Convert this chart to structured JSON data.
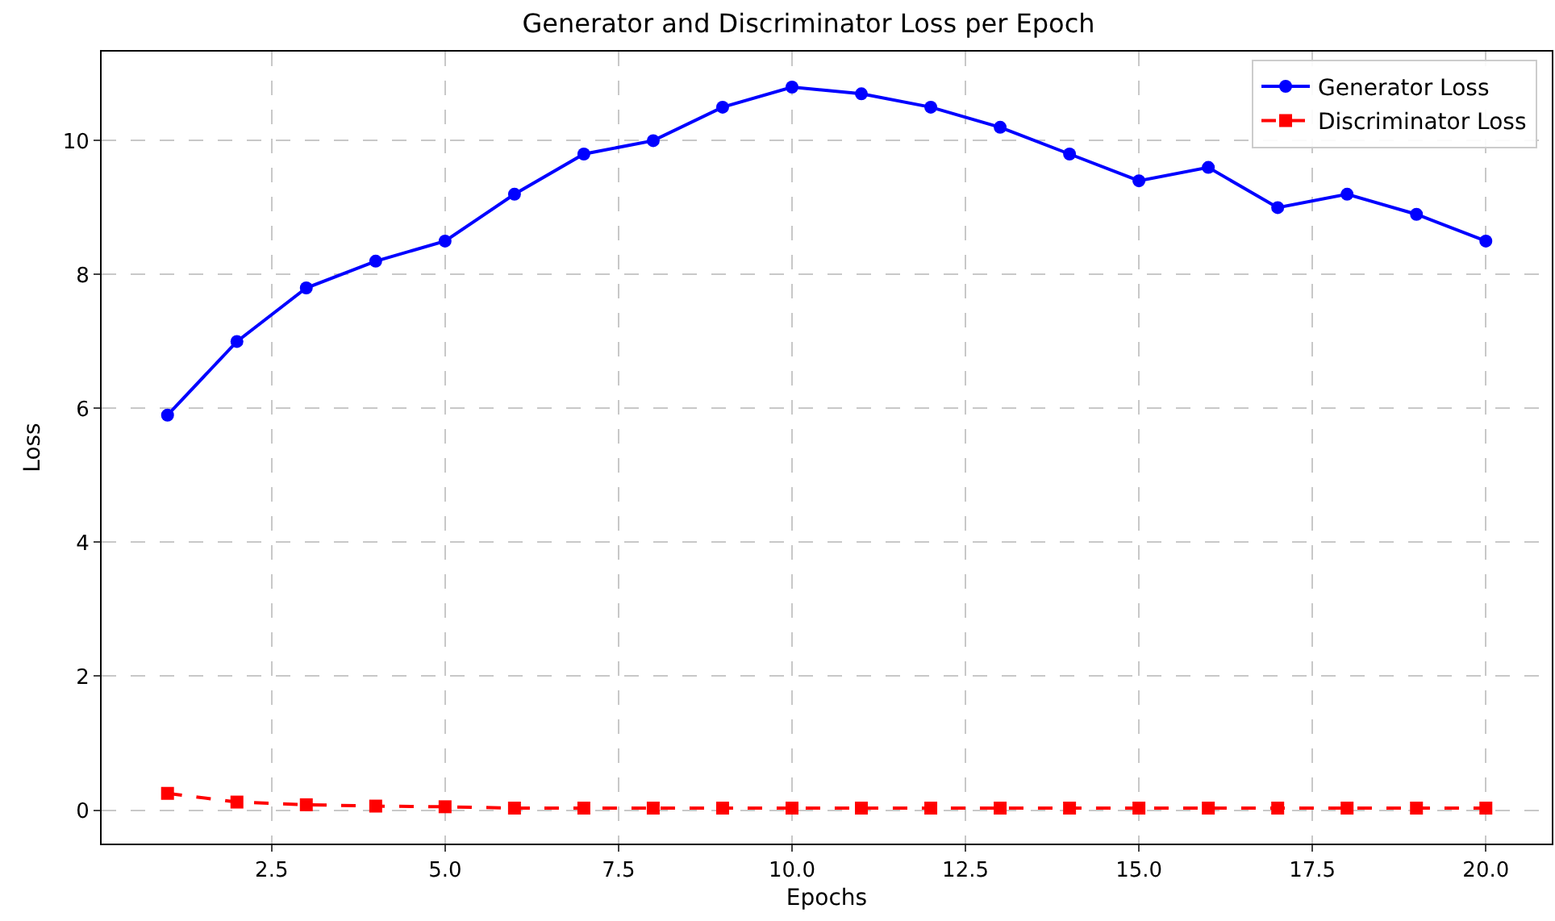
{
  "chart_data": {
    "type": "line",
    "title": "Generator and Discriminator Loss per Epoch",
    "xlabel": "Epochs",
    "ylabel": "Loss",
    "x": [
      1,
      2,
      3,
      4,
      5,
      6,
      7,
      8,
      9,
      10,
      11,
      12,
      13,
      14,
      15,
      16,
      17,
      18,
      19,
      20
    ],
    "series": [
      {
        "name": "Generator Loss",
        "color": "#0000ff",
        "marker": "circle",
        "line_style": "solid",
        "values": [
          5.9,
          7.0,
          7.8,
          8.2,
          8.5,
          9.2,
          9.8,
          10.0,
          10.5,
          10.8,
          10.7,
          10.5,
          10.2,
          9.8,
          9.4,
          9.6,
          9.0,
          9.2,
          8.9,
          8.5
        ]
      },
      {
        "name": "Discriminator Loss",
        "color": "#ff0000",
        "marker": "square",
        "line_style": "dashed",
        "values": [
          0.25,
          0.12,
          0.08,
          0.06,
          0.05,
          0.03,
          0.03,
          0.03,
          0.03,
          0.03,
          0.03,
          0.03,
          0.03,
          0.03,
          0.03,
          0.03,
          0.03,
          0.03,
          0.03,
          0.03
        ]
      }
    ],
    "xlim": [
      0.05,
      20.95
    ],
    "xticks": [
      {
        "value": 2.5,
        "label": "2.5"
      },
      {
        "value": 5,
        "label": "5.0"
      },
      {
        "value": 7.5,
        "label": "7.5"
      },
      {
        "value": 10,
        "label": "10.0"
      },
      {
        "value": 12.5,
        "label": "12.5"
      },
      {
        "value": 15,
        "label": "15.0"
      },
      {
        "value": 17.5,
        "label": "17.5"
      },
      {
        "value": 20,
        "label": "20.0"
      }
    ],
    "ylim": [
      -0.5,
      11.33
    ],
    "yticks": [
      0,
      2,
      4,
      6,
      8,
      10
    ],
    "grid": true,
    "legend": "top right"
  }
}
